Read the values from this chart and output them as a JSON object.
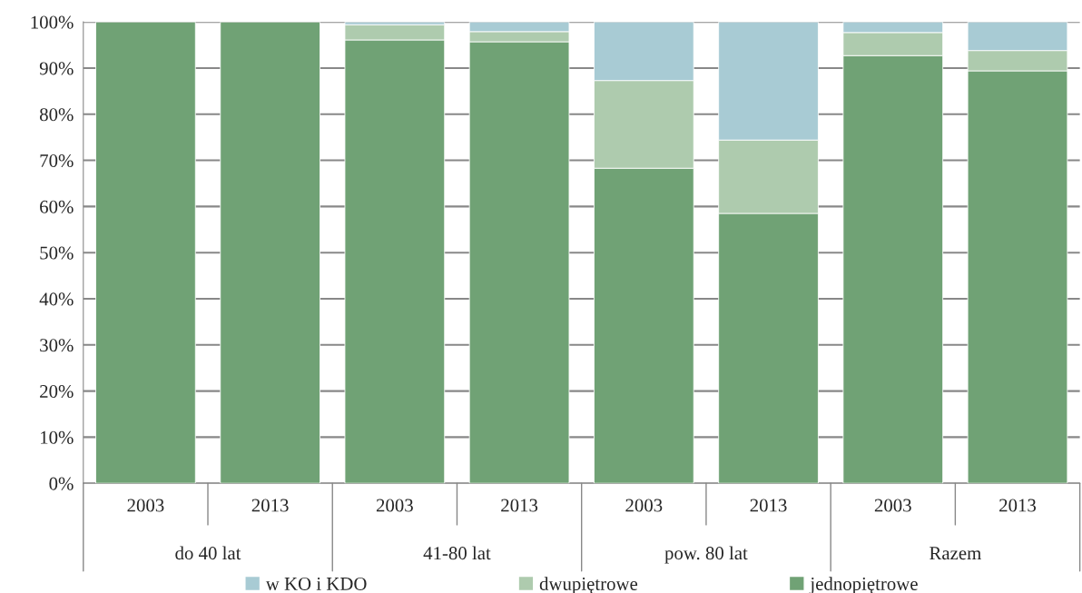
{
  "chart_data": {
    "type": "bar",
    "stacked": true,
    "categories": [
      "2003",
      "2013",
      "2003",
      "2013",
      "2003",
      "2013",
      "2003",
      "2013"
    ],
    "annotations": [
      "do 40 lat",
      "41-80 lat",
      "pow. 80 lat",
      "Razem"
    ],
    "series": [
      {
        "name": "jednopiętrowe",
        "color": "#70a275",
        "values": [
          100,
          100,
          96.1,
          95.7,
          68.3,
          58.5,
          92.7,
          89.4
        ]
      },
      {
        "name": "dwupiętrowe",
        "color": "#aecbae",
        "values": [
          null,
          null,
          3.3,
          2.2,
          19.0,
          15.9,
          5.0,
          4.4
        ]
      },
      {
        "name": "w KO i KDO",
        "color": "#a8cbd4",
        "values": [
          null,
          null,
          0.6,
          2.1,
          12.7,
          25.6,
          2.3,
          6.2
        ]
      }
    ],
    "ylim": [
      0,
      100
    ],
    "yticks": [
      {
        "value": 0,
        "label": "0%"
      },
      {
        "value": 10,
        "label": "10%"
      },
      {
        "value": 20,
        "label": "20%"
      },
      {
        "value": 30,
        "label": "30%"
      },
      {
        "value": 40,
        "label": "40%"
      },
      {
        "value": 50,
        "label": "50%"
      },
      {
        "value": 60,
        "label": "60%"
      },
      {
        "value": 70,
        "label": "70%"
      },
      {
        "value": 80,
        "label": "80%"
      },
      {
        "value": 90,
        "label": "90%"
      },
      {
        "value": 100,
        "label": "100%"
      }
    ],
    "grid": "y",
    "legend": "bottom"
  }
}
